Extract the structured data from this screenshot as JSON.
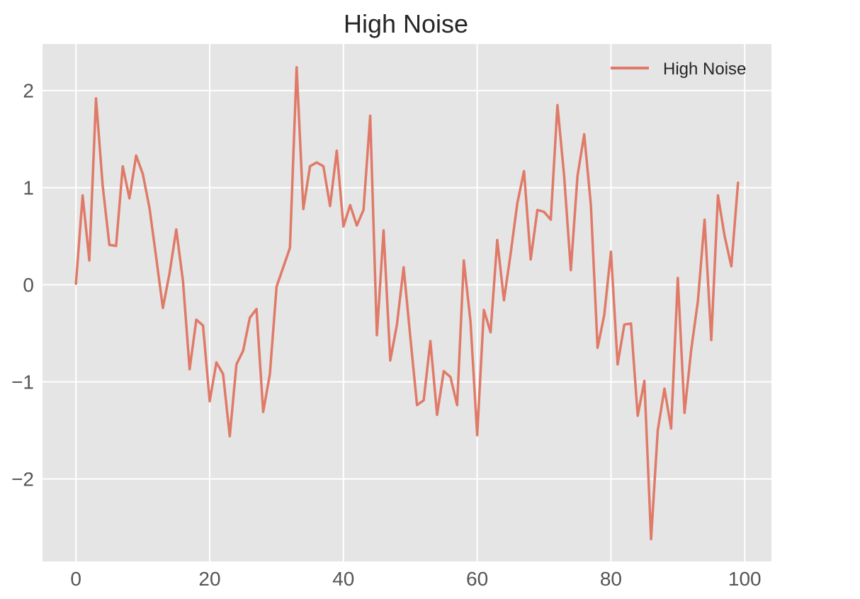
{
  "chart_data": {
    "type": "line",
    "title": "High Noise",
    "xlabel": "",
    "ylabel": "",
    "xlim": [
      -5,
      104
    ],
    "ylim": [
      -2.85,
      2.48
    ],
    "xticks": [
      0,
      20,
      40,
      60,
      80,
      100
    ],
    "yticks": [
      -2,
      -1,
      0,
      1,
      2
    ],
    "xtick_labels": [
      "0",
      "20",
      "40",
      "60",
      "80",
      "100"
    ],
    "ytick_labels": [
      "−2",
      "−1",
      "0",
      "1",
      "2"
    ],
    "grid": true,
    "legend_position": "upper right",
    "colors": {
      "background": "#E5E5E5",
      "grid": "#FFFFFF",
      "series": "#E07A68",
      "text": "#262626",
      "tick_text": "#555555"
    },
    "series": [
      {
        "name": "High Noise",
        "x": [
          0,
          1,
          2,
          3,
          4,
          5,
          6,
          7,
          8,
          9,
          10,
          11,
          12,
          13,
          14,
          15,
          16,
          17,
          18,
          19,
          20,
          21,
          22,
          23,
          24,
          25,
          26,
          27,
          28,
          29,
          30,
          31,
          32,
          33,
          34,
          35,
          36,
          37,
          38,
          39,
          40,
          41,
          42,
          43,
          44,
          45,
          46,
          47,
          48,
          49,
          50,
          51,
          52,
          53,
          54,
          55,
          56,
          57,
          58,
          59,
          60,
          61,
          62,
          63,
          64,
          65,
          66,
          67,
          68,
          69,
          70,
          71,
          72,
          73,
          74,
          75,
          76,
          77,
          78,
          79,
          80,
          81,
          82,
          83,
          84,
          85,
          86,
          87,
          88,
          89,
          90,
          91,
          92,
          93,
          94,
          95,
          96,
          97,
          98,
          99
        ],
        "values": [
          0.01,
          0.92,
          0.25,
          1.92,
          1.02,
          0.41,
          0.4,
          1.22,
          0.89,
          1.33,
          1.14,
          0.79,
          0.28,
          -0.24,
          0.12,
          0.57,
          0.04,
          -0.87,
          -0.36,
          -0.42,
          -1.2,
          -0.8,
          -0.92,
          -1.56,
          -0.82,
          -0.68,
          -0.34,
          -0.25,
          -1.31,
          -0.92,
          -0.02,
          0.18,
          0.38,
          2.24,
          0.78,
          1.22,
          1.26,
          1.22,
          0.81,
          1.38,
          0.6,
          0.82,
          0.61,
          0.77,
          1.74,
          -0.52,
          0.56,
          -0.78,
          -0.41,
          0.18,
          -0.54,
          -1.24,
          -1.19,
          -0.58,
          -1.34,
          -0.89,
          -0.95,
          -1.24,
          0.25,
          -0.38,
          -1.55,
          -0.26,
          -0.49,
          0.46,
          -0.16,
          0.32,
          0.84,
          1.17,
          0.26,
          0.77,
          0.75,
          0.67,
          1.85,
          1.12,
          0.15,
          1.12,
          1.55,
          0.82,
          -0.65,
          -0.31,
          0.34,
          -0.82,
          -0.41,
          -0.4,
          -1.35,
          -0.99,
          -2.62,
          -1.5,
          -1.07,
          -1.48,
          0.07,
          -1.32,
          -0.67,
          -0.17,
          0.67,
          -0.57,
          0.92,
          0.5,
          0.19,
          1.05
        ]
      }
    ]
  }
}
